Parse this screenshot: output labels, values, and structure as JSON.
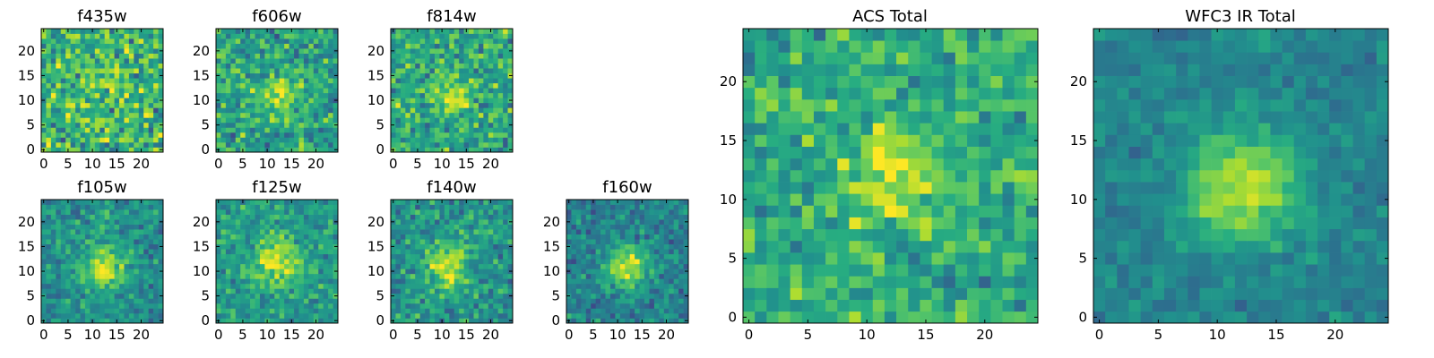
{
  "chart_data": [
    {
      "type": "heatmap",
      "title": "f435w",
      "grid_size": 25,
      "xlim": [
        0,
        24
      ],
      "ylim": [
        0,
        24
      ],
      "x_ticks": [
        "0",
        "5",
        "10",
        "15",
        "20"
      ],
      "y_ticks": [
        "0",
        "5",
        "10",
        "15",
        "20"
      ],
      "colormap": "viridis",
      "center": [
        12,
        12
      ],
      "peak": 0.08,
      "sigma": 3.0,
      "noise": 0.45,
      "base": 0.66
    },
    {
      "type": "heatmap",
      "title": "f606w",
      "grid_size": 25,
      "xlim": [
        0,
        24
      ],
      "ylim": [
        0,
        24
      ],
      "x_ticks": [
        "0",
        "5",
        "10",
        "15",
        "20"
      ],
      "y_ticks": [
        "0",
        "5",
        "10",
        "15",
        "20"
      ],
      "colormap": "viridis",
      "center": [
        12,
        11
      ],
      "peak": 0.28,
      "sigma": 3.0,
      "noise": 0.36,
      "base": 0.58
    },
    {
      "type": "heatmap",
      "title": "f814w",
      "grid_size": 25,
      "xlim": [
        0,
        24
      ],
      "ylim": [
        0,
        24
      ],
      "x_ticks": [
        "0",
        "5",
        "10",
        "15",
        "20"
      ],
      "y_ticks": [
        "0",
        "5",
        "10",
        "15",
        "20"
      ],
      "colormap": "viridis",
      "center": [
        12,
        11
      ],
      "peak": 0.24,
      "sigma": 3.0,
      "noise": 0.38,
      "base": 0.6
    },
    {
      "type": "heatmap",
      "title": "f105w",
      "grid_size": 25,
      "xlim": [
        0,
        24
      ],
      "ylim": [
        0,
        24
      ],
      "x_ticks": [
        "0",
        "5",
        "10",
        "15",
        "20"
      ],
      "y_ticks": [
        "0",
        "5",
        "10",
        "15",
        "20"
      ],
      "colormap": "viridis",
      "center": [
        12,
        11
      ],
      "peak": 0.42,
      "sigma": 3.2,
      "noise": 0.28,
      "base": 0.5
    },
    {
      "type": "heatmap",
      "title": "f125w",
      "grid_size": 25,
      "xlim": [
        0,
        24
      ],
      "ylim": [
        0,
        24
      ],
      "x_ticks": [
        "0",
        "5",
        "10",
        "15",
        "20"
      ],
      "y_ticks": [
        "0",
        "5",
        "10",
        "15",
        "20"
      ],
      "colormap": "viridis",
      "center": [
        12,
        12
      ],
      "peak": 0.38,
      "sigma": 3.5,
      "noise": 0.28,
      "base": 0.55
    },
    {
      "type": "heatmap",
      "title": "f140w",
      "grid_size": 25,
      "xlim": [
        0,
        24
      ],
      "ylim": [
        0,
        24
      ],
      "x_ticks": [
        "0",
        "5",
        "10",
        "15",
        "20"
      ],
      "y_ticks": [
        "0",
        "5",
        "10",
        "15",
        "20"
      ],
      "colormap": "viridis",
      "center": [
        11,
        11
      ],
      "peak": 0.42,
      "sigma": 3.0,
      "noise": 0.3,
      "base": 0.52
    },
    {
      "type": "heatmap",
      "title": "f160w",
      "grid_size": 25,
      "xlim": [
        0,
        24
      ],
      "ylim": [
        0,
        24
      ],
      "x_ticks": [
        "0",
        "5",
        "10",
        "15",
        "20"
      ],
      "y_ticks": [
        "0",
        "5",
        "10",
        "15",
        "20"
      ],
      "colormap": "viridis",
      "center": [
        12,
        11
      ],
      "peak": 0.5,
      "sigma": 2.8,
      "noise": 0.26,
      "base": 0.45
    },
    {
      "type": "heatmap",
      "title": "ACS Total",
      "grid_size": 25,
      "xlim": [
        0,
        24
      ],
      "ylim": [
        0,
        24
      ],
      "x_ticks": [
        "0",
        "5",
        "10",
        "15",
        "20"
      ],
      "y_ticks": [
        "0",
        "5",
        "10",
        "15",
        "20"
      ],
      "colormap": "viridis",
      "center": [
        12,
        12
      ],
      "peak": 0.3,
      "sigma": 3.0,
      "noise": 0.3,
      "base": 0.62
    },
    {
      "type": "heatmap",
      "title": "WFC3 IR Total",
      "grid_size": 25,
      "xlim": [
        0,
        24
      ],
      "ylim": [
        0,
        24
      ],
      "x_ticks": [
        "0",
        "5",
        "10",
        "15",
        "20"
      ],
      "y_ticks": [
        "0",
        "5",
        "10",
        "15",
        "20"
      ],
      "colormap": "viridis",
      "center": [
        12,
        11
      ],
      "peak": 0.48,
      "sigma": 3.2,
      "noise": 0.16,
      "base": 0.45
    }
  ]
}
